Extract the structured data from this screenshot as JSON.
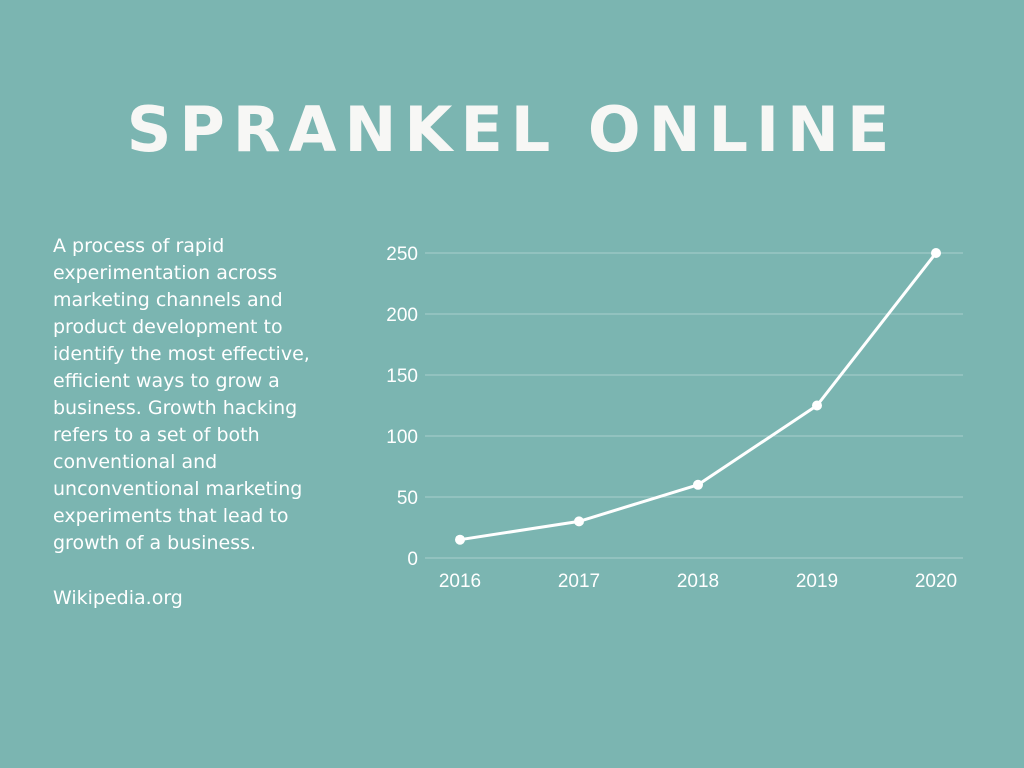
{
  "page": {
    "title": "SPRANKEL ONLINE",
    "description": "A process of rapid experimentation across marketing channels and product development to identify the most effective, efficient ways to grow a business. Growth hacking refers to a set of both conventional and unconventional marketing experiments that lead to growth of a business.",
    "source": "Wikipedia.org"
  },
  "colors": {
    "background": "#7bb5b1",
    "line": "#ffffff",
    "grid": "#a9d0cd",
    "text": "#ffffff"
  },
  "chart_data": {
    "type": "line",
    "x": [
      "2016",
      "2017",
      "2018",
      "2019",
      "2020"
    ],
    "series": [
      {
        "values": [
          15,
          30,
          60,
          125,
          250
        ]
      }
    ],
    "y_ticks": [
      "0",
      "50",
      "100",
      "150",
      "200",
      "250"
    ],
    "ylim": [
      0,
      250
    ],
    "grid": true,
    "markers": true
  }
}
